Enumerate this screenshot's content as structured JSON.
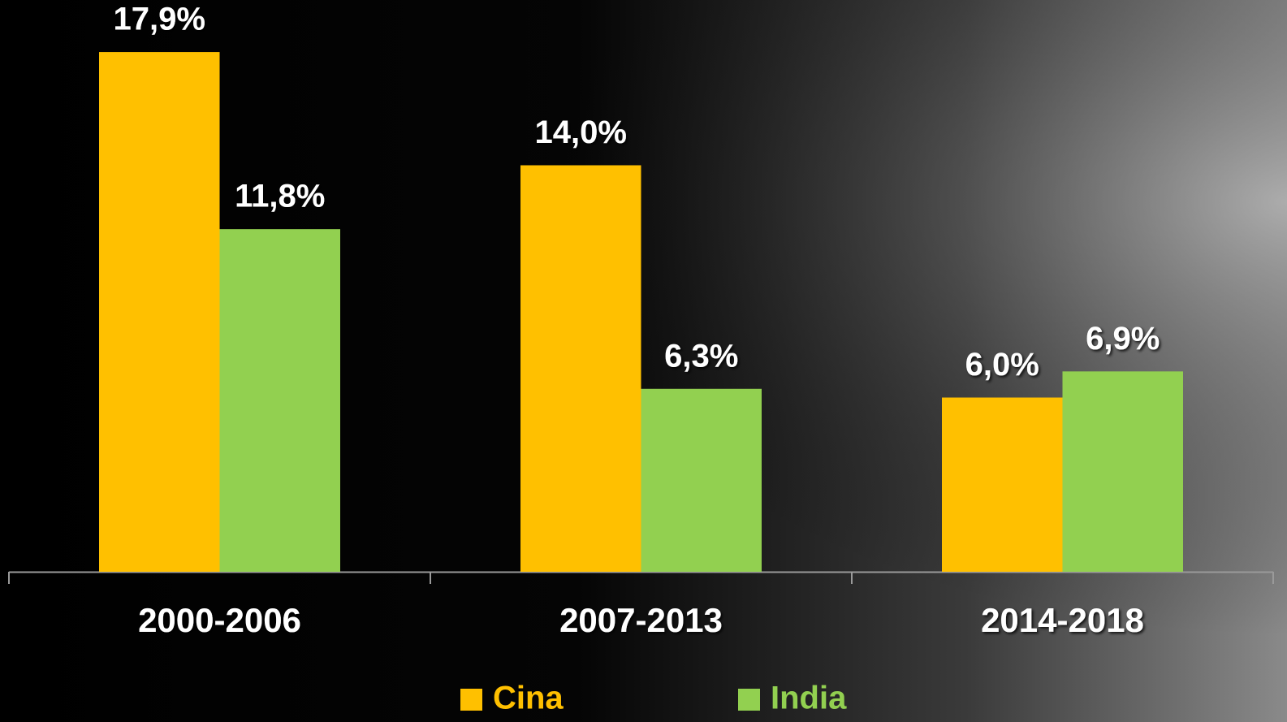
{
  "chart_data": {
    "type": "bar",
    "categories": [
      "2000-2006",
      "2007-2013",
      "2014-2018"
    ],
    "series": [
      {
        "name": "Cina",
        "color": "#ffc000",
        "values": [
          17.9,
          14.0,
          6.0
        ],
        "value_labels": [
          "17,9%",
          "14,0%",
          "6,0%"
        ]
      },
      {
        "name": "India",
        "color": "#92d050",
        "values": [
          11.8,
          6.3,
          6.9
        ],
        "value_labels": [
          "11,8%",
          "6,3%",
          "6,9%"
        ]
      }
    ],
    "ylim": [
      0,
      20
    ],
    "legend": "bottom"
  }
}
